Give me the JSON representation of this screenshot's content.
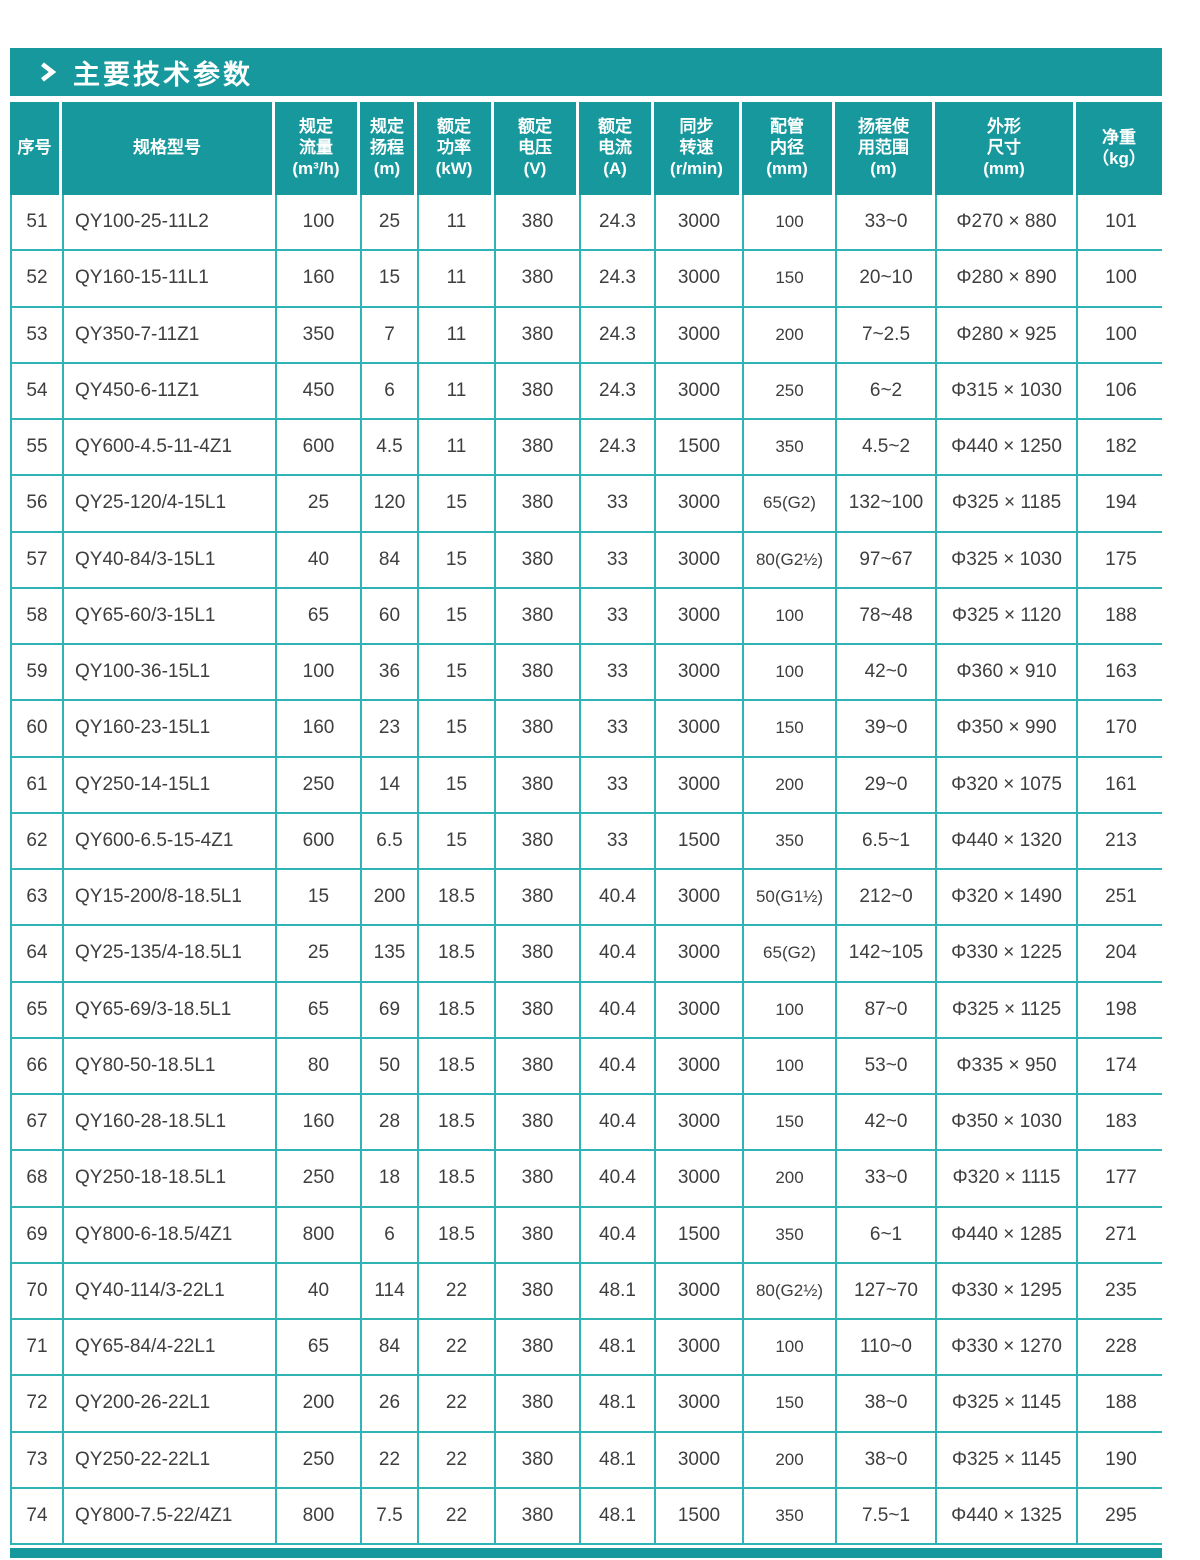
{
  "section": {
    "title": "主要技术参数"
  },
  "table": {
    "headers": [
      {
        "key": "index",
        "lines": [
          "序号"
        ]
      },
      {
        "key": "model",
        "lines": [
          "规格型号"
        ]
      },
      {
        "key": "flow",
        "lines": [
          "规定",
          "流量",
          "(m³/h)"
        ]
      },
      {
        "key": "head",
        "lines": [
          "规定",
          "扬程",
          "(m)"
        ]
      },
      {
        "key": "power",
        "lines": [
          "额定",
          "功率",
          "(kW)"
        ]
      },
      {
        "key": "voltage",
        "lines": [
          "额定",
          "电压",
          "(V)"
        ]
      },
      {
        "key": "current",
        "lines": [
          "额定",
          "电流",
          "(A)"
        ]
      },
      {
        "key": "speed",
        "lines": [
          "同步",
          "转速",
          "(r/min)"
        ]
      },
      {
        "key": "pipe",
        "lines": [
          "配管",
          "内径",
          "(mm)"
        ]
      },
      {
        "key": "range",
        "lines": [
          "扬程使",
          "用范围",
          "(m)"
        ]
      },
      {
        "key": "dims",
        "lines": [
          "外形",
          "尺寸",
          "(mm)"
        ]
      },
      {
        "key": "weight",
        "lines": [
          "净重",
          "（kg）"
        ]
      }
    ],
    "rows": [
      [
        "51",
        "QY100-25-11L2",
        "100",
        "25",
        "11",
        "380",
        "24.3",
        "3000",
        "100",
        "33~0",
        "Φ270 × 880",
        "101"
      ],
      [
        "52",
        "QY160-15-11L1",
        "160",
        "15",
        "11",
        "380",
        "24.3",
        "3000",
        "150",
        "20~10",
        "Φ280 × 890",
        "100"
      ],
      [
        "53",
        "QY350-7-11Z1",
        "350",
        "7",
        "11",
        "380",
        "24.3",
        "3000",
        "200",
        "7~2.5",
        "Φ280 × 925",
        "100"
      ],
      [
        "54",
        "QY450-6-11Z1",
        "450",
        "6",
        "11",
        "380",
        "24.3",
        "3000",
        "250",
        "6~2",
        "Φ315 × 1030",
        "106"
      ],
      [
        "55",
        "QY600-4.5-11-4Z1",
        "600",
        "4.5",
        "11",
        "380",
        "24.3",
        "1500",
        "350",
        "4.5~2",
        "Φ440 × 1250",
        "182"
      ],
      [
        "56",
        "QY25-120/4-15L1",
        "25",
        "120",
        "15",
        "380",
        "33",
        "3000",
        "65(G2)",
        "132~100",
        "Φ325 × 1185",
        "194"
      ],
      [
        "57",
        "QY40-84/3-15L1",
        "40",
        "84",
        "15",
        "380",
        "33",
        "3000",
        "80(G2½)",
        "97~67",
        "Φ325 × 1030",
        "175"
      ],
      [
        "58",
        "QY65-60/3-15L1",
        "65",
        "60",
        "15",
        "380",
        "33",
        "3000",
        "100",
        "78~48",
        "Φ325 × 1120",
        "188"
      ],
      [
        "59",
        "QY100-36-15L1",
        "100",
        "36",
        "15",
        "380",
        "33",
        "3000",
        "100",
        "42~0",
        "Φ360 × 910",
        "163"
      ],
      [
        "60",
        "QY160-23-15L1",
        "160",
        "23",
        "15",
        "380",
        "33",
        "3000",
        "150",
        "39~0",
        "Φ350 × 990",
        "170"
      ],
      [
        "61",
        "QY250-14-15L1",
        "250",
        "14",
        "15",
        "380",
        "33",
        "3000",
        "200",
        "29~0",
        "Φ320 × 1075",
        "161"
      ],
      [
        "62",
        "QY600-6.5-15-4Z1",
        "600",
        "6.5",
        "15",
        "380",
        "33",
        "1500",
        "350",
        "6.5~1",
        "Φ440 × 1320",
        "213"
      ],
      [
        "63",
        "QY15-200/8-18.5L1",
        "15",
        "200",
        "18.5",
        "380",
        "40.4",
        "3000",
        "50(G1½)",
        "212~0",
        "Φ320 × 1490",
        "251"
      ],
      [
        "64",
        "QY25-135/4-18.5L1",
        "25",
        "135",
        "18.5",
        "380",
        "40.4",
        "3000",
        "65(G2)",
        "142~105",
        "Φ330 × 1225",
        "204"
      ],
      [
        "65",
        "QY65-69/3-18.5L1",
        "65",
        "69",
        "18.5",
        "380",
        "40.4",
        "3000",
        "100",
        "87~0",
        "Φ325 × 1125",
        "198"
      ],
      [
        "66",
        "QY80-50-18.5L1",
        "80",
        "50",
        "18.5",
        "380",
        "40.4",
        "3000",
        "100",
        "53~0",
        "Φ335 × 950",
        "174"
      ],
      [
        "67",
        "QY160-28-18.5L1",
        "160",
        "28",
        "18.5",
        "380",
        "40.4",
        "3000",
        "150",
        "42~0",
        "Φ350 × 1030",
        "183"
      ],
      [
        "68",
        "QY250-18-18.5L1",
        "250",
        "18",
        "18.5",
        "380",
        "40.4",
        "3000",
        "200",
        "33~0",
        "Φ320 × 1115",
        "177"
      ],
      [
        "69",
        "QY800-6-18.5/4Z1",
        "800",
        "6",
        "18.5",
        "380",
        "40.4",
        "1500",
        "350",
        "6~1",
        "Φ440 × 1285",
        "271"
      ],
      [
        "70",
        "QY40-114/3-22L1",
        "40",
        "114",
        "22",
        "380",
        "48.1",
        "3000",
        "80(G2½)",
        "127~70",
        "Φ330 × 1295",
        "235"
      ],
      [
        "71",
        "QY65-84/4-22L1",
        "65",
        "84",
        "22",
        "380",
        "48.1",
        "3000",
        "100",
        "110~0",
        "Φ330 × 1270",
        "228"
      ],
      [
        "72",
        "QY200-26-22L1",
        "200",
        "26",
        "22",
        "380",
        "48.1",
        "3000",
        "150",
        "38~0",
        "Φ325 × 1145",
        "188"
      ],
      [
        "73",
        "QY250-22-22L1",
        "250",
        "22",
        "22",
        "380",
        "48.1",
        "3000",
        "200",
        "38~0",
        "Φ325 × 1145",
        "190"
      ],
      [
        "74",
        "QY800-7.5-22/4Z1",
        "800",
        "7.5",
        "22",
        "380",
        "48.1",
        "1500",
        "350",
        "7.5~1",
        "Φ440 × 1325",
        "295"
      ]
    ]
  },
  "icons": {
    "title_arrow": "chevron-right"
  },
  "colors": {
    "accent_teal": "#17989D",
    "grid_line": "#2FB3B5",
    "header_text": "#FFFFFF",
    "body_text": "#3E3E40",
    "page_background": "#FFFFFF"
  }
}
